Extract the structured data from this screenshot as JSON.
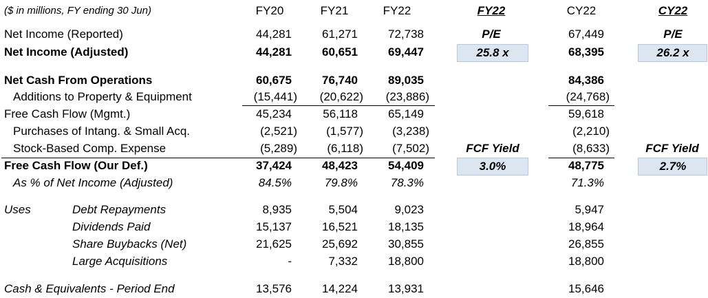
{
  "header": {
    "units_note": "($ in millions, FY ending 30 Jun)",
    "fy20": "FY20",
    "fy21": "FY21",
    "fy22": "FY22",
    "fy22_val": "FY22",
    "cy22": "CY22",
    "cy22_val": "CY22"
  },
  "rows": {
    "ni_rep": {
      "label": "Net Income (Reported)",
      "fy20": "44,281",
      "fy21": "61,271",
      "fy22": "72,738",
      "cy22": "67,449"
    },
    "ni_adj": {
      "label": "Net Income (Adjusted)",
      "fy20": "44,281",
      "fy21": "60,651",
      "fy22": "69,447",
      "cy22": "68,395"
    },
    "cfo": {
      "label": "Net Cash From Operations",
      "fy20": "60,675",
      "fy21": "76,740",
      "fy22": "89,035",
      "cy22": "84,386"
    },
    "capex": {
      "label": "Additions to Property & Equipment",
      "fy20": "(15,441)",
      "fy21": "(20,622)",
      "fy22": "(23,886)",
      "cy22": "(24,768)"
    },
    "fcf_mgmt": {
      "label": "Free Cash Flow (Mgmt.)",
      "fy20": "45,234",
      "fy21": "56,118",
      "fy22": "65,149",
      "cy22": "59,618"
    },
    "intang": {
      "label": "Purchases of Intang. & Small Acq.",
      "fy20": "(2,521)",
      "fy21": "(1,577)",
      "fy22": "(3,238)",
      "cy22": "(2,210)"
    },
    "sbc": {
      "label": "Stock-Based Comp. Expense",
      "fy20": "(5,289)",
      "fy21": "(6,118)",
      "fy22": "(7,502)",
      "cy22": "(8,633)"
    },
    "fcf_ours": {
      "label": "Free Cash Flow (Our Def.)",
      "fy20": "37,424",
      "fy21": "48,423",
      "fy22": "54,409",
      "cy22": "48,775"
    },
    "fcf_pct": {
      "label": "As % of Net Income (Adjusted)",
      "fy20": "84.5%",
      "fy21": "79.8%",
      "fy22": "78.3%",
      "cy22": "71.3%"
    },
    "debt": {
      "group": "Uses",
      "label": "Debt Repayments",
      "fy20": "8,935",
      "fy21": "5,504",
      "fy22": "9,023",
      "cy22": "5,947"
    },
    "divs": {
      "label": "Dividends Paid",
      "fy20": "15,137",
      "fy21": "16,521",
      "fy22": "18,135",
      "cy22": "18,964"
    },
    "buyback": {
      "label": "Share Buybacks (Net)",
      "fy20": "21,625",
      "fy21": "25,692",
      "fy22": "30,855",
      "cy22": "26,855"
    },
    "acq": {
      "label": "Large Acquisitions",
      "fy20": "-",
      "fy21": "7,332",
      "fy22": "18,800",
      "cy22": "18,800"
    },
    "cash": {
      "label": "Cash & Equivalents - Period End",
      "fy20": "13,576",
      "fy21": "14,224",
      "fy22": "13,931",
      "cy22": "15,646"
    }
  },
  "valuation": {
    "pe_label": "P/E",
    "pe_fy22": "25.8 x",
    "pe_cy22": "26.2 x",
    "fcf_yield_label": "FCF Yield",
    "fcf_yield_fy22": "3.0%",
    "fcf_yield_cy22": "2.7%"
  },
  "colors": {
    "highlight": "#dce6f1"
  }
}
